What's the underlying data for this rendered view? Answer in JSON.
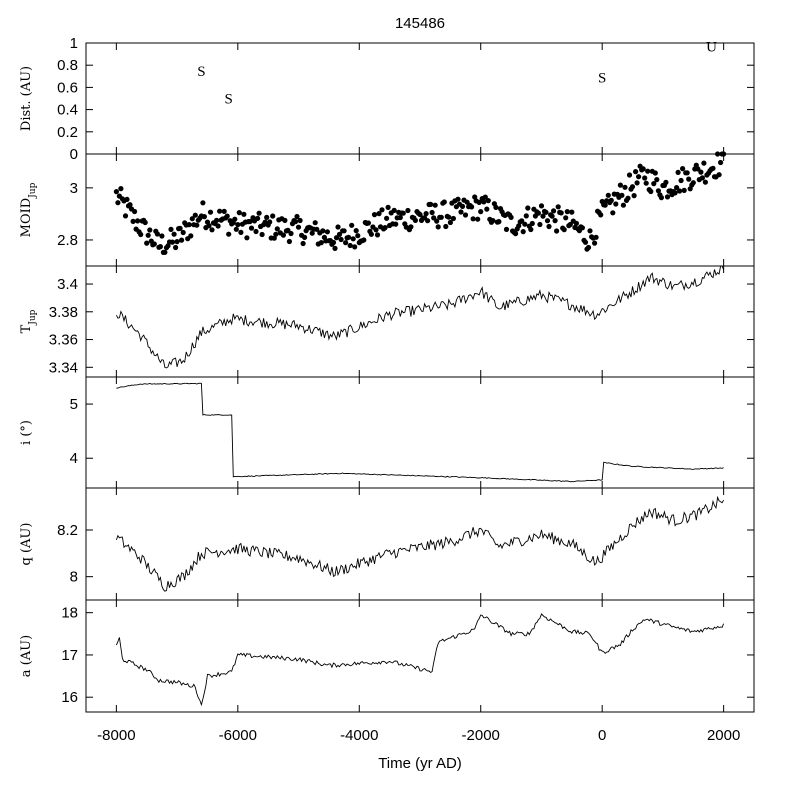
{
  "chart_data": {
    "type": "multi-panel time series",
    "title": "145486",
    "xlabel": "Time (yr AD)",
    "xlim": [
      -8500,
      2500
    ],
    "xticks": [
      -8000,
      -6000,
      -4000,
      -2000,
      0,
      2000
    ],
    "xtick_labels": [
      "-8000",
      "-6000",
      "-4000",
      "-2000",
      "0",
      "2000"
    ],
    "panels": [
      {
        "id": "dist",
        "ylabel": "Dist. (AU)",
        "type": "annotation",
        "ylim": [
          0,
          1
        ],
        "yticks": [
          0,
          0.2,
          0.4,
          0.6,
          0.8,
          1
        ],
        "ytick_labels": [
          "0",
          "0.2",
          "0.4",
          "0.6",
          "0.8",
          "1"
        ],
        "annotations": [
          {
            "label": "S",
            "x": -6600,
            "y": 0.75
          },
          {
            "label": "S",
            "x": -6150,
            "y": 0.5
          },
          {
            "label": "S",
            "x": 0,
            "y": 0.69
          },
          {
            "label": "U",
            "x": 1800,
            "y": 0.97
          }
        ]
      },
      {
        "id": "moid",
        "ylabel": "MOID",
        "ylabel_sub": "Jup",
        "type": "scatter",
        "ylim": [
          2.7,
          3.13
        ],
        "yticks": [
          2.8,
          3.0
        ],
        "ytick_labels": [
          "2.8",
          "3"
        ],
        "anchors": [
          [
            -8000,
            2.97
          ],
          [
            -7600,
            2.85
          ],
          [
            -7300,
            2.78
          ],
          [
            -7000,
            2.8
          ],
          [
            -6600,
            2.9
          ],
          [
            -6000,
            2.86
          ],
          [
            -5000,
            2.84
          ],
          [
            -4300,
            2.8
          ],
          [
            -3500,
            2.88
          ],
          [
            -2500,
            2.9
          ],
          [
            -2000,
            2.93
          ],
          [
            -1500,
            2.86
          ],
          [
            -1000,
            2.9
          ],
          [
            -500,
            2.86
          ],
          [
            -200,
            2.8
          ],
          [
            0,
            2.9
          ],
          [
            300,
            2.97
          ],
          [
            700,
            3.05
          ],
          [
            1000,
            3.0
          ],
          [
            1500,
            3.05
          ],
          [
            2000,
            3.1
          ]
        ],
        "noise": 0.05,
        "step": 25
      },
      {
        "id": "tjup",
        "ylabel": "T",
        "ylabel_sub": "Jup",
        "type": "line",
        "ylim": [
          3.333,
          3.413
        ],
        "yticks": [
          3.34,
          3.36,
          3.38,
          3.4
        ],
        "ytick_labels": [
          "3.34",
          "3.36",
          "3.38",
          "3.4"
        ],
        "anchors": [
          [
            -8000,
            3.38
          ],
          [
            -7600,
            3.363
          ],
          [
            -7200,
            3.34
          ],
          [
            -6900,
            3.345
          ],
          [
            -6600,
            3.365
          ],
          [
            -6100,
            3.375
          ],
          [
            -5000,
            3.37
          ],
          [
            -4400,
            3.362
          ],
          [
            -3500,
            3.378
          ],
          [
            -2500,
            3.385
          ],
          [
            -2000,
            3.395
          ],
          [
            -1700,
            3.383
          ],
          [
            -1000,
            3.392
          ],
          [
            -500,
            3.385
          ],
          [
            -100,
            3.378
          ],
          [
            500,
            3.395
          ],
          [
            800,
            3.405
          ],
          [
            1200,
            3.398
          ],
          [
            1600,
            3.403
          ],
          [
            2000,
            3.412
          ]
        ],
        "noise": 0.004,
        "step": 25
      },
      {
        "id": "incl",
        "ylabel": "i (°)",
        "type": "line",
        "ylim": [
          3.45,
          5.5
        ],
        "yticks": [
          4,
          5
        ],
        "ytick_labels": [
          "4",
          "5"
        ],
        "anchors": [
          [
            -8000,
            5.3
          ],
          [
            -7600,
            5.37
          ],
          [
            -6600,
            5.38
          ],
          [
            -6580,
            4.8
          ],
          [
            -6100,
            4.8
          ],
          [
            -6080,
            3.66
          ],
          [
            -4300,
            3.72
          ],
          [
            -2000,
            3.64
          ],
          [
            -500,
            3.57
          ],
          [
            0,
            3.6
          ],
          [
            20,
            3.92
          ],
          [
            500,
            3.85
          ],
          [
            1500,
            3.8
          ],
          [
            2000,
            3.82
          ]
        ],
        "noise": 0.008,
        "step": 25
      },
      {
        "id": "q",
        "ylabel": "q (AU)",
        "type": "line",
        "ylim": [
          7.9,
          8.38
        ],
        "yticks": [
          8,
          8.2
        ],
        "ytick_labels": [
          "8",
          "8.2"
        ],
        "anchors": [
          [
            -8000,
            8.17
          ],
          [
            -7600,
            8.08
          ],
          [
            -7200,
            7.96
          ],
          [
            -6900,
            8.0
          ],
          [
            -6600,
            8.1
          ],
          [
            -6000,
            8.12
          ],
          [
            -5000,
            8.08
          ],
          [
            -4400,
            8.02
          ],
          [
            -3500,
            8.1
          ],
          [
            -2500,
            8.15
          ],
          [
            -2000,
            8.2
          ],
          [
            -1700,
            8.13
          ],
          [
            -1000,
            8.18
          ],
          [
            -500,
            8.14
          ],
          [
            -100,
            8.06
          ],
          [
            500,
            8.22
          ],
          [
            800,
            8.28
          ],
          [
            1200,
            8.24
          ],
          [
            1600,
            8.27
          ],
          [
            2000,
            8.33
          ]
        ],
        "noise": 0.025,
        "step": 25
      },
      {
        "id": "a",
        "ylabel": "a (AU)",
        "type": "line",
        "ylim": [
          15.65,
          18.3
        ],
        "yticks": [
          16,
          17,
          18
        ],
        "ytick_labels": [
          "16",
          "17",
          "18"
        ],
        "anchors": [
          [
            -8000,
            17.2
          ],
          [
            -7950,
            17.4
          ],
          [
            -7900,
            16.9
          ],
          [
            -7500,
            16.65
          ],
          [
            -7300,
            16.4
          ],
          [
            -7000,
            16.35
          ],
          [
            -6700,
            16.25
          ],
          [
            -6600,
            15.8
          ],
          [
            -6500,
            16.5
          ],
          [
            -6100,
            16.6
          ],
          [
            -6000,
            17.0
          ],
          [
            -5000,
            16.9
          ],
          [
            -4500,
            16.75
          ],
          [
            -3500,
            16.85
          ],
          [
            -2800,
            16.6
          ],
          [
            -2700,
            17.3
          ],
          [
            -2100,
            17.6
          ],
          [
            -2000,
            17.95
          ],
          [
            -1500,
            17.5
          ],
          [
            -1200,
            17.5
          ],
          [
            -1000,
            17.95
          ],
          [
            -500,
            17.55
          ],
          [
            -200,
            17.5
          ],
          [
            0,
            17.05
          ],
          [
            300,
            17.25
          ],
          [
            500,
            17.6
          ],
          [
            700,
            17.85
          ],
          [
            1200,
            17.65
          ],
          [
            1500,
            17.55
          ],
          [
            2000,
            17.7
          ]
        ],
        "noise": 0.05,
        "step": 25
      }
    ]
  }
}
